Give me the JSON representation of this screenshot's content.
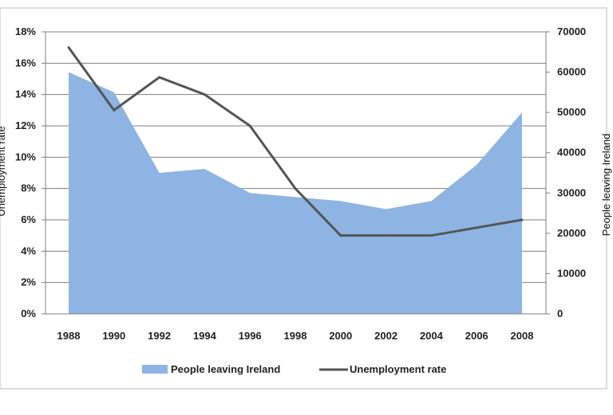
{
  "chart_data": {
    "type": "area",
    "categories": [
      "1988",
      "1990",
      "1992",
      "1994",
      "1996",
      "1998",
      "2000",
      "2002",
      "2004",
      "2006",
      "2008"
    ],
    "series": [
      {
        "name": "People leaving Ireland",
        "type": "area",
        "axis": "right",
        "color": "#8eb4e3",
        "values": [
          60000,
          55000,
          35000,
          36000,
          30000,
          29000,
          28000,
          26000,
          28000,
          37000,
          50000
        ]
      },
      {
        "name": "Unemployment rate",
        "type": "line",
        "axis": "left",
        "color": "#555555",
        "values": [
          17.0,
          13.0,
          15.1,
          14.0,
          12.0,
          8.0,
          5.0,
          5.0,
          5.0,
          5.5,
          6.0
        ]
      }
    ],
    "y_left": {
      "label": "Unemployment rate",
      "min": 0,
      "max": 18,
      "step": 2,
      "ticks": [
        "0%",
        "2%",
        "4%",
        "6%",
        "8%",
        "10%",
        "12%",
        "14%",
        "16%",
        "18%"
      ]
    },
    "y_right": {
      "label": "People leaving Ireland",
      "min": 0,
      "max": 70000,
      "step": 10000,
      "ticks": [
        "0",
        "10000",
        "20000",
        "30000",
        "40000",
        "50000",
        "60000",
        "70000"
      ]
    },
    "grid": true,
    "legend_position": "bottom"
  }
}
